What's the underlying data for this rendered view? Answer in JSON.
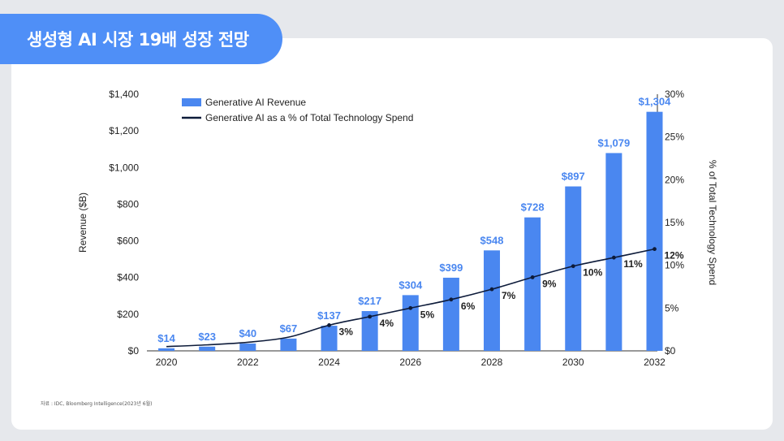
{
  "header": {
    "title": "생성형 AI 시장 19배 성장 전망"
  },
  "source": "자료 : IDC, Bloomberg Intelligence(2023년 6월)",
  "colors": {
    "bar": "#4a87f0",
    "line": "#0d1b3a",
    "tab": "#4f8ff7"
  },
  "chart_data": {
    "type": "bar",
    "x": [
      2020,
      2021,
      2022,
      2023,
      2024,
      2025,
      2026,
      2027,
      2028,
      2029,
      2030,
      2031,
      2032
    ],
    "x_tick_labels": [
      "2020",
      "2022",
      "2024",
      "2026",
      "2028",
      "2030",
      "2032"
    ],
    "series": [
      {
        "name": "Generative AI Revenue",
        "type": "bar",
        "axis": "left",
        "values": [
          14,
          23,
          40,
          67,
          137,
          217,
          304,
          399,
          548,
          728,
          897,
          1079,
          1304
        ],
        "labels": [
          "$14",
          "$23",
          "$40",
          "$67",
          "$137",
          "$217",
          "$304",
          "$399",
          "$548",
          "$728",
          "$897",
          "$1,079",
          "$1,304"
        ]
      },
      {
        "name": "Generative AI as a % of Total Technology Spend",
        "type": "line",
        "axis": "right",
        "values": [
          0.5,
          0.7,
          1.0,
          1.6,
          3.0,
          4.0,
          5.0,
          6.0,
          7.2,
          8.6,
          9.9,
          10.9,
          11.9
        ],
        "labels": [
          "",
          "",
          "",
          "",
          "3%",
          "4%",
          "5%",
          "6%",
          "7%",
          "9%",
          "10%",
          "11%",
          "12%"
        ]
      }
    ],
    "ylabel": "Revenue ($B)",
    "y2label": "% of Total Technology Spend",
    "ylim": [
      0,
      1400
    ],
    "y2lim": [
      0,
      30
    ],
    "y_ticks": [
      "$0",
      "$200",
      "$400",
      "$600",
      "$800",
      "$1,000",
      "$1,200",
      "$1,400"
    ],
    "y2_ticks": [
      "$0",
      "5%",
      "10%",
      "15%",
      "20%",
      "25%",
      "30%"
    ],
    "legend": "top-left",
    "grid": false
  }
}
